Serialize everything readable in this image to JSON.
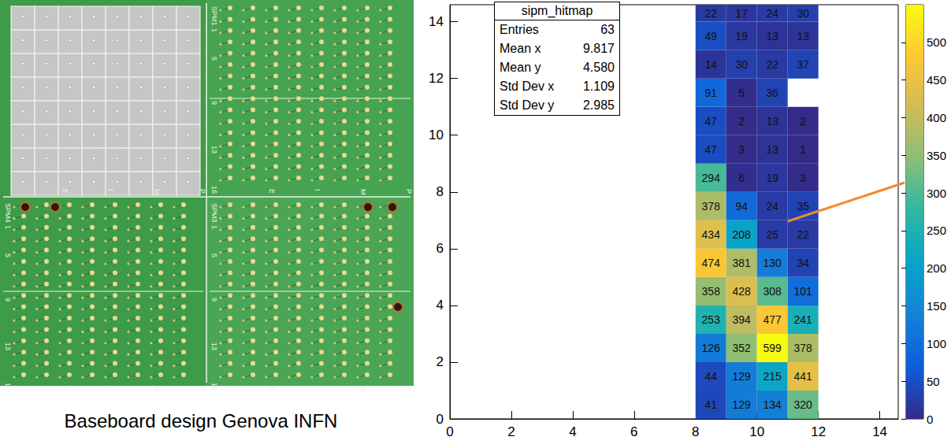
{
  "board": {
    "caption": "Baseboard design Genova INFN",
    "silkscreen": {
      "modules": [
        "SPM1",
        "SPM4",
        "SPM3"
      ],
      "rows": [
        "1",
        "5",
        "9",
        "13",
        "16"
      ],
      "columns": [
        "E",
        "I",
        "M",
        "P"
      ]
    }
  },
  "chart_data": {
    "type": "heatmap",
    "title": "sipm_hitmap",
    "stats": [
      {
        "label": "Entries",
        "value": "63"
      },
      {
        "label": "Mean x",
        "value": "9.817"
      },
      {
        "label": "Mean y",
        "value": "4.580"
      },
      {
        "label": "Std Dev x",
        "value": "1.109"
      },
      {
        "label": "Std Dev y",
        "value": "2.985"
      }
    ],
    "x_bins": [
      8,
      9,
      10,
      11,
      12
    ],
    "y_bins": [
      0,
      1,
      2,
      3,
      4,
      5,
      6,
      7,
      8,
      9,
      10,
      11,
      12,
      13,
      14,
      15
    ],
    "cells": [
      [
        41,
        129,
        134,
        320
      ],
      [
        44,
        129,
        215,
        441
      ],
      [
        126,
        352,
        599,
        378
      ],
      [
        253,
        394,
        477,
        241
      ],
      [
        358,
        428,
        308,
        101
      ],
      [
        474,
        381,
        130,
        34
      ],
      [
        434,
        208,
        25,
        22
      ],
      [
        378,
        94,
        24,
        35
      ],
      [
        294,
        6,
        19,
        3
      ],
      [
        47,
        3,
        13,
        1
      ],
      [
        47,
        2,
        13,
        2
      ],
      [
        91,
        5,
        36,
        null
      ],
      [
        14,
        30,
        22,
        37
      ],
      [
        49,
        19,
        13,
        13
      ],
      [
        22,
        17,
        24,
        30
      ]
    ],
    "xlim": [
      0,
      14.6
    ],
    "xticks": [
      0,
      2,
      4,
      6,
      8,
      10,
      12,
      14
    ],
    "ylim": [
      0,
      14.6
    ],
    "yticks": [
      0,
      2,
      4,
      6,
      8,
      10,
      12,
      14
    ],
    "data_labels": true,
    "colorbar": {
      "range": [
        0,
        550
      ],
      "ticks": [
        0,
        50,
        100,
        150,
        200,
        250,
        300,
        350,
        400,
        450,
        500
      ],
      "colors": [
        "#352a87",
        "#0f5cdd",
        "#1481d6",
        "#06a4ca",
        "#2eb7a4",
        "#87bf77",
        "#d1bb59",
        "#fec832",
        "#f9fb0e"
      ]
    }
  }
}
